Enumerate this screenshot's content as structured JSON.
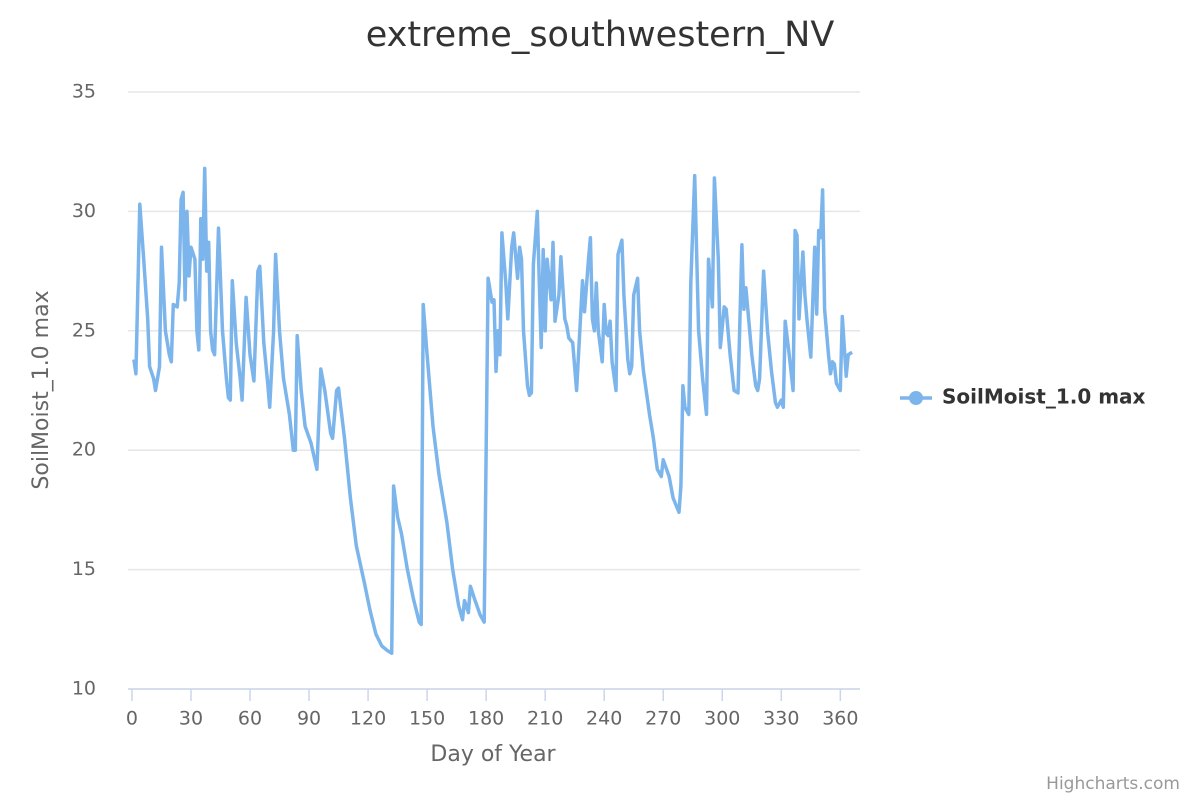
{
  "chart_data": {
    "type": "line",
    "title": "extreme_southwestern_NV",
    "xlabel": "Day of Year",
    "ylabel": "SoilMoist_1.0 max",
    "credits": "Highcharts.com",
    "xlim": [
      -2,
      370
    ],
    "xticks": [
      0,
      30,
      60,
      90,
      120,
      150,
      180,
      210,
      240,
      270,
      300,
      330,
      360
    ],
    "ylim": [
      10,
      35
    ],
    "yticks": [
      10,
      15,
      20,
      25,
      30,
      35
    ],
    "grid": true,
    "legend": "right",
    "x": [
      1,
      2,
      4,
      6,
      8,
      9,
      11,
      12,
      14,
      15,
      17,
      19,
      20,
      21,
      23,
      24,
      25,
      26,
      27,
      28,
      29,
      30,
      32,
      33,
      34,
      35,
      36,
      37,
      38,
      39,
      40,
      41,
      42,
      44,
      46,
      48,
      49,
      50,
      51,
      53,
      55,
      56,
      58,
      60,
      62,
      64,
      65,
      67,
      69,
      70,
      72,
      73,
      75,
      77,
      80,
      82,
      83,
      84,
      86,
      88,
      91,
      94,
      96,
      98,
      101,
      102,
      104,
      105,
      108,
      111,
      114,
      118,
      121,
      124,
      127,
      130,
      132,
      133,
      135,
      137,
      140,
      143,
      146,
      147,
      148,
      150,
      153,
      156,
      160,
      163,
      166,
      168,
      169,
      171,
      172,
      174,
      177,
      179,
      181,
      183,
      184,
      185,
      186,
      187,
      188,
      190,
      191,
      193,
      194,
      196,
      197,
      198,
      199,
      201,
      202,
      203,
      204,
      206,
      207,
      208,
      209,
      210,
      211,
      213,
      214,
      215,
      217,
      218,
      220,
      221,
      222,
      224,
      226,
      229,
      230,
      232,
      233,
      234,
      235,
      236,
      237,
      239,
      240,
      241,
      242,
      243,
      244,
      246,
      247,
      249,
      250,
      252,
      253,
      254,
      255,
      257,
      258,
      260,
      263,
      265,
      267,
      269,
      270,
      273,
      275,
      278,
      279,
      280,
      281,
      283,
      284,
      286,
      288,
      290,
      292,
      293,
      295,
      296,
      298,
      299,
      301,
      302,
      304,
      306,
      308,
      310,
      311,
      312,
      315,
      317,
      318,
      319,
      321,
      323,
      325,
      327,
      328,
      330,
      331,
      332,
      334,
      336,
      337,
      338,
      339,
      341,
      342,
      343,
      345,
      347,
      348,
      349,
      350,
      351,
      352,
      354,
      355,
      356,
      357,
      358,
      360,
      361,
      363,
      364,
      366
    ],
    "series": [
      {
        "name": "SoilMoist_1.0 max",
        "color": "#7cb5ec",
        "values": [
          23.8,
          23.2,
          30.3,
          28,
          25.5,
          23.5,
          23,
          22.5,
          23.5,
          28.5,
          25,
          24,
          23.7,
          26.1,
          26,
          27,
          30.5,
          30.8,
          26.3,
          30,
          27.3,
          28.5,
          28,
          25,
          24.2,
          29.7,
          28,
          31.8,
          27.5,
          28.7,
          25,
          24.2,
          24,
          29.3,
          25,
          23,
          22.2,
          22.1,
          27.1,
          24.5,
          23,
          22.1,
          26.4,
          24,
          22.9,
          27.5,
          27.7,
          24.5,
          22.8,
          21.8,
          25,
          28.2,
          25,
          23,
          21.5,
          20,
          20,
          24.8,
          22.5,
          21,
          20.3,
          19.2,
          23.4,
          22.5,
          20.7,
          20.5,
          22.5,
          22.6,
          20.5,
          18,
          16,
          14.5,
          13.3,
          12.3,
          11.8,
          11.6,
          11.5,
          18.5,
          17.2,
          16.5,
          15,
          13.8,
          12.8,
          12.7,
          26.1,
          24,
          21,
          19,
          17,
          15,
          13.5,
          12.9,
          13.7,
          13.2,
          14.3,
          13.8,
          13.1,
          12.8,
          27.2,
          26.2,
          26.3,
          23.3,
          25,
          24,
          29.1,
          27,
          25.5,
          28.5,
          29.1,
          27.2,
          28.5,
          28,
          25,
          22.7,
          22.3,
          22.4,
          27.8,
          30,
          27,
          24.3,
          28.4,
          25,
          28,
          26.3,
          28.7,
          25.4,
          26.5,
          28.1,
          25.5,
          25.2,
          24.7,
          24.5,
          22.5,
          27.1,
          25.8,
          28,
          28.9,
          25.5,
          25,
          27,
          25,
          23.7,
          26.1,
          24.9,
          24.8,
          25.4,
          23.7,
          22.5,
          28.2,
          28.8,
          26.5,
          23.8,
          23.2,
          23.5,
          26.5,
          27.2,
          25,
          23.3,
          21.5,
          20.5,
          19.2,
          18.9,
          19.6,
          18.9,
          18,
          17.4,
          18.5,
          22.7,
          21.8,
          21.5,
          27,
          31.5,
          25,
          23,
          21.5,
          28,
          26,
          31.4,
          28,
          24.3,
          26,
          25.9,
          24,
          22.5,
          22.4,
          28.6,
          25.9,
          26.8,
          24,
          22.7,
          22.5,
          23,
          27.5,
          25,
          23.3,
          22,
          21.8,
          22.1,
          21.8,
          25.4,
          24,
          22.5,
          29.2,
          29,
          25.5,
          28.3,
          26.5,
          25.5,
          23.9,
          28.5,
          25.7,
          29.2,
          28.9,
          30.9,
          25.9,
          24,
          23.2,
          23.7,
          23.6,
          22.8,
          22.5,
          25.6,
          23.1,
          24,
          24.1
        ]
      }
    ]
  }
}
